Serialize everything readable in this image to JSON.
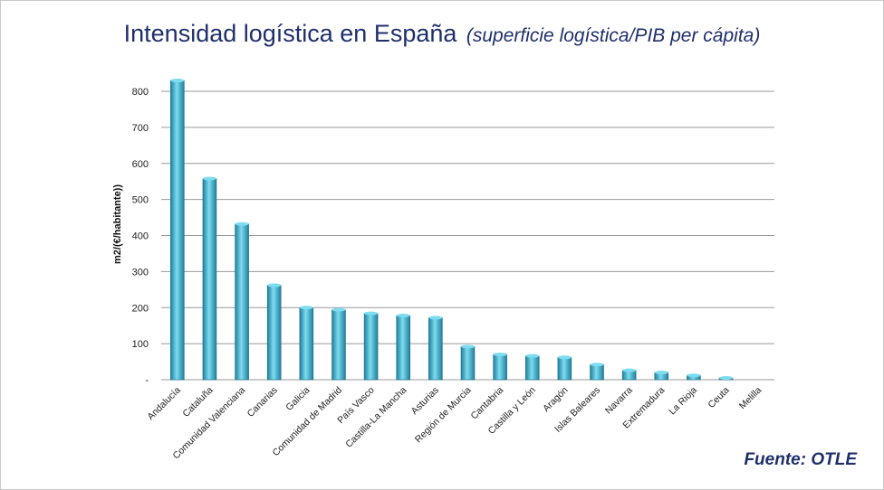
{
  "title": {
    "main": "Intensidad logística en España",
    "sub": "(superficie logística/PIB per cápita)"
  },
  "source": "Fuente: OTLE",
  "colors": {
    "title": "#1f2f6b",
    "bar_dark": "#1f7f9c",
    "bar_light": "#7ddcf0",
    "grid": "#9a9a9a"
  },
  "chart_data": {
    "type": "bar",
    "title": "Intensidad logística en España (superficie logística/PIB per cápita)",
    "xlabel": "",
    "ylabel": "m2/(€/habitante))",
    "ylim": [
      0,
      800
    ],
    "yticks": [
      0,
      100,
      200,
      300,
      400,
      500,
      600,
      700,
      800
    ],
    "ytick_labels": [
      "-",
      "100",
      "200",
      "300",
      "400",
      "500",
      "600",
      "700",
      "800"
    ],
    "grid": true,
    "categories": [
      "Andalucía",
      "Cataluña",
      "Comunidad Valenciana",
      "Canarias",
      "Galicia",
      "Comunidad de Madrid",
      "País Vasco",
      "Castilla-La Mancha",
      "Asturias",
      "Región de Murcia",
      "Cantabria",
      "Castilla y León",
      "Aragón",
      "Islas Baleares",
      "Navarra",
      "Extremadura",
      "La Rioja",
      "Ceuta",
      "Melilla"
    ],
    "values": [
      830,
      558,
      432,
      262,
      200,
      194,
      184,
      178,
      172,
      92,
      70,
      66,
      62,
      42,
      26,
      20,
      12,
      5,
      0
    ]
  }
}
